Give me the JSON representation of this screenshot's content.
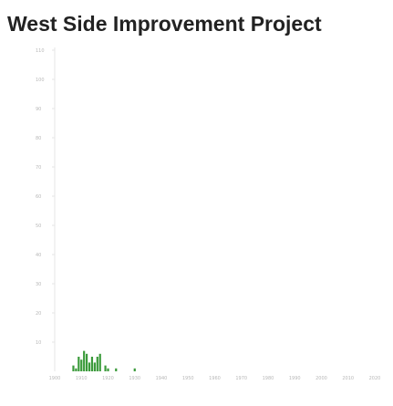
{
  "title": "West Side Improvement Project",
  "chart_data": {
    "type": "bar",
    "title": "West Side Improvement Project",
    "xlabel": "",
    "ylabel": "",
    "xlim": [
      1900,
      2020
    ],
    "ylim": [
      0,
      110
    ],
    "x_ticks": [
      1900,
      1910,
      1920,
      1930,
      1940,
      1950,
      1960,
      1970,
      1980,
      1990,
      2000,
      2010,
      2020
    ],
    "y_ticks": [
      10,
      20,
      30,
      40,
      50,
      60,
      70,
      80,
      90,
      100,
      110
    ],
    "grid": false,
    "bar_color": "#3a9a3a",
    "points": [
      {
        "x": 1907,
        "y": 2
      },
      {
        "x": 1908,
        "y": 1
      },
      {
        "x": 1909,
        "y": 5
      },
      {
        "x": 1910,
        "y": 4
      },
      {
        "x": 1911,
        "y": 7
      },
      {
        "x": 1912,
        "y": 6
      },
      {
        "x": 1913,
        "y": 3
      },
      {
        "x": 1914,
        "y": 5
      },
      {
        "x": 1915,
        "y": 3
      },
      {
        "x": 1916,
        "y": 5
      },
      {
        "x": 1917,
        "y": 6
      },
      {
        "x": 1919,
        "y": 2
      },
      {
        "x": 1920,
        "y": 1
      },
      {
        "x": 1923,
        "y": 1
      },
      {
        "x": 1930,
        "y": 1
      }
    ]
  }
}
